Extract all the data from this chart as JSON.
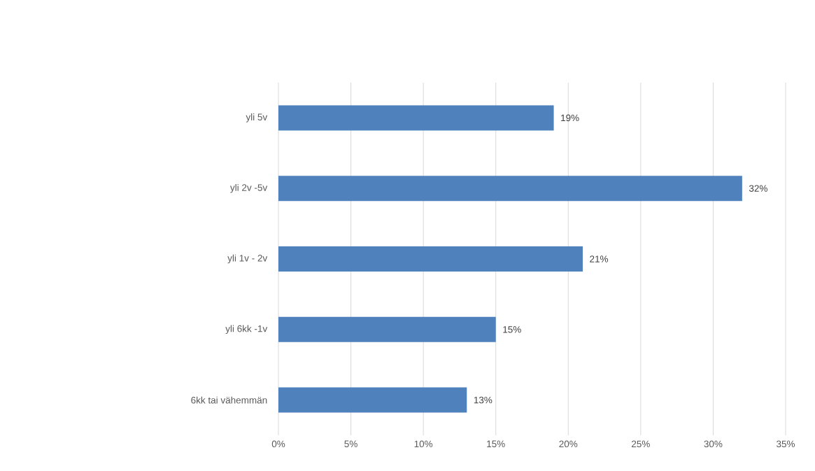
{
  "chart_data": {
    "type": "bar",
    "orientation": "horizontal",
    "categories": [
      "yli 5v",
      "yli 2v -5v",
      "yli 1v - 2v",
      "yli 6kk -1v",
      "6kk tai vähemmän"
    ],
    "values": [
      19,
      32,
      21,
      15,
      13
    ],
    "value_labels": [
      "19%",
      "32%",
      "21%",
      "15%",
      "13%"
    ],
    "color": "#4f81bd",
    "xlim": [
      0,
      35
    ],
    "xticks": [
      {
        "value": 0,
        "label": "0%"
      },
      {
        "value": 5,
        "label": "5%"
      },
      {
        "value": 10,
        "label": "10%"
      },
      {
        "value": 15,
        "label": "15%"
      },
      {
        "value": 20,
        "label": "20%"
      },
      {
        "value": 25,
        "label": "25%"
      },
      {
        "value": 30,
        "label": "30%"
      },
      {
        "value": 35,
        "label": "35%"
      }
    ],
    "grid": "x"
  }
}
